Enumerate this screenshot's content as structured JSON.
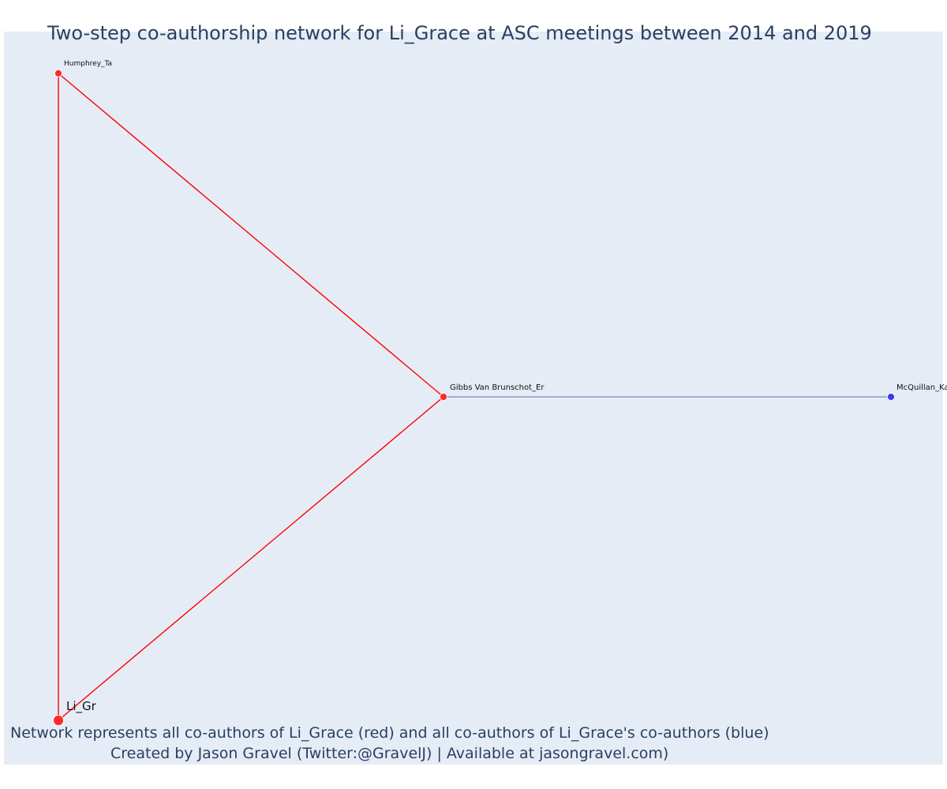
{
  "title": "Two-step co-authorship network for Li_Grace at ASC meetings between 2014 and 2019",
  "caption": {
    "line1": "Network represents all co-authors of Li_Grace (red) and all co-authors of Li_Grace's co-authors (blue)",
    "line2": "Created by Jason Gravel (Twitter:@GravelJ) | Available at jasongravel.com)"
  },
  "colors": {
    "plot_background": "#e5ecf6",
    "direct_coauthor": "#ff2a2a",
    "second_step_coauthor": "#3b3bef",
    "direct_edge": "#ff0000",
    "second_step_edge": "#6f6fa8"
  },
  "network": {
    "nodes": [
      {
        "id": "Humphrey_Ta",
        "label": "Humphrey_Ta",
        "group": "direct",
        "size": "small"
      },
      {
        "id": "Gibbs Van Brunschot_Er",
        "label": "Gibbs Van Brunschot_Er",
        "group": "direct",
        "size": "small"
      },
      {
        "id": "McQuillan_Ka",
        "label": "McQuillan_Ka",
        "group": "second_step",
        "size": "small"
      },
      {
        "id": "Li_Gr",
        "label": "Li_Gr",
        "group": "focal",
        "size": "large"
      }
    ],
    "edges": [
      {
        "source": "Li_Gr",
        "target": "Humphrey_Ta",
        "group": "direct"
      },
      {
        "source": "Li_Gr",
        "target": "Gibbs Van Brunschot_Er",
        "group": "direct"
      },
      {
        "source": "Humphrey_Ta",
        "target": "Gibbs Van Brunschot_Er",
        "group": "direct"
      },
      {
        "source": "Gibbs Van Brunschot_Er",
        "target": "McQuillan_Ka",
        "group": "second_step"
      }
    ]
  }
}
